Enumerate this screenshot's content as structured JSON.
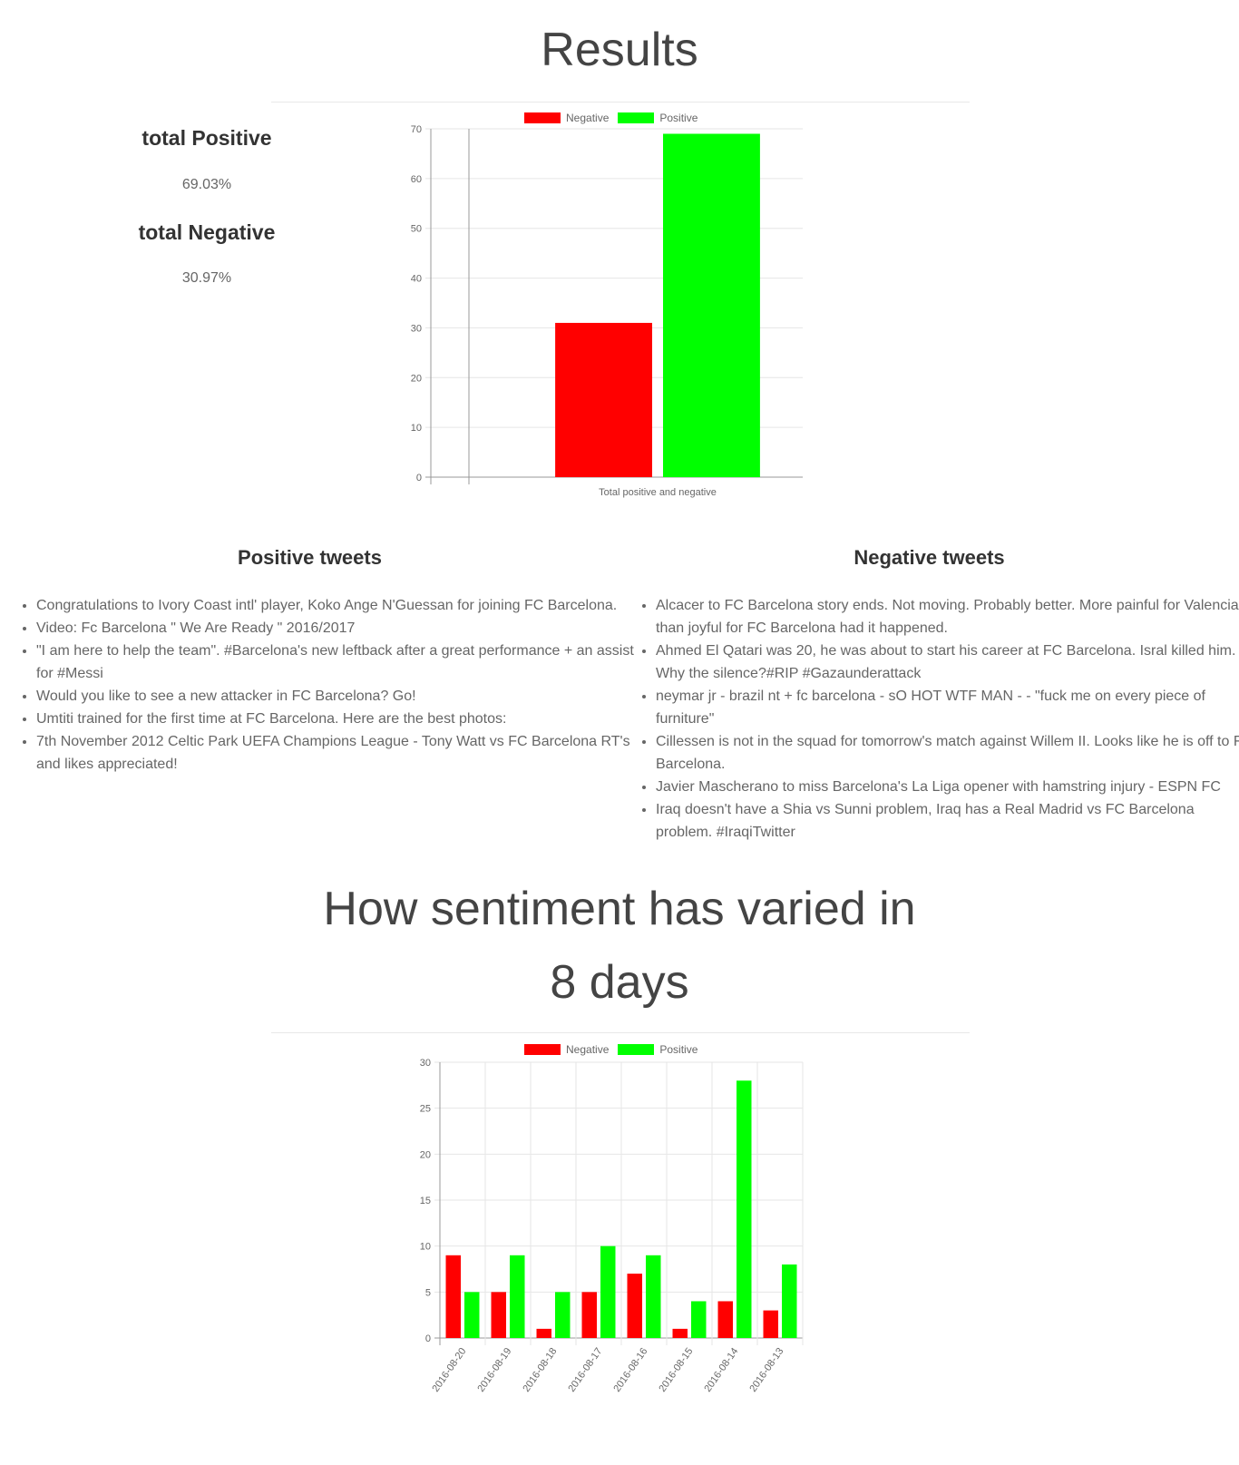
{
  "results": {
    "title": "Results",
    "total_positive_label": "total Positive",
    "total_positive_value": "69.03%",
    "total_negative_label": "total Negative",
    "total_negative_value": "30.97%"
  },
  "colors": {
    "negative": "#ff0000",
    "positive": "#00ff00",
    "grid": "#e6e6e6",
    "axis": "#999999"
  },
  "positive_tweets": {
    "title": "Positive tweets",
    "items": [
      "Congratulations to Ivory Coast intl' player, Koko Ange N'Guessan for joining FC Barcelona.",
      "Video: Fc Barcelona \" We Are Ready \" 2016/2017",
      "\"I am here to help the team\". #Barcelona's new leftback after a great performance + an assist for #Messi",
      "Would you like to see a new attacker in FC Barcelona? Go!",
      "Umtiti trained for the first time at FC Barcelona. Here are the best photos:",
      "7th November 2012 Celtic Park UEFA Champions League - Tony Watt vs FC Barcelona RT's and likes appreciated!"
    ]
  },
  "negative_tweets": {
    "title": "Negative tweets",
    "items": [
      "Alcacer to FC Barcelona story ends. Not moving. Probably better. More painful for Valencia than joyful for FC Barcelona had it happened.",
      "Ahmed El Qatari was 20, he was about to start his career at FC Barcelona. Isral killed him. Why the silence?#RIP #Gazaunderattack",
      "neymar jr - brazil nt + fc barcelona - sO HOT WTF MAN - - \"fuck me on every piece of furniture\"",
      "Cillessen is not in the squad for tomorrow's match against Willem II. Looks like he is off to FC Barcelona.",
      "Javier Mascherano to miss Barcelona's La Liga opener with hamstring injury - ESPN FC",
      "Iraq doesn't have a Shia vs Sunni problem, Iraq has a Real Madrid vs FC Barcelona problem. #IraqiTwitter"
    ]
  },
  "variation": {
    "title_line1": "How sentiment has varied in",
    "title_line2": "8 days"
  },
  "chart_data": [
    {
      "type": "bar",
      "categories": [
        "Total positive and negative"
      ],
      "series": [
        {
          "name": "Negative",
          "values": [
            31
          ]
        },
        {
          "name": "Positive",
          "values": [
            69
          ]
        }
      ],
      "yticks": [
        "0",
        "10",
        "20",
        "30",
        "40",
        "50",
        "60",
        "70"
      ],
      "ylim": [
        0,
        70
      ],
      "legend": "top"
    },
    {
      "type": "bar",
      "categories": [
        "2016-08-20",
        "2016-08-19",
        "2016-08-18",
        "2016-08-17",
        "2016-08-16",
        "2016-08-15",
        "2016-08-14",
        "2016-08-13"
      ],
      "series": [
        {
          "name": "Negative",
          "values": [
            9,
            5,
            1,
            5,
            7,
            1,
            4,
            3
          ]
        },
        {
          "name": "Positive",
          "values": [
            5,
            9,
            5,
            10,
            9,
            4,
            28,
            8
          ]
        }
      ],
      "yticks": [
        "0",
        "5",
        "10",
        "15",
        "20",
        "25",
        "30"
      ],
      "ylim": [
        0,
        30
      ],
      "legend": "top"
    }
  ]
}
